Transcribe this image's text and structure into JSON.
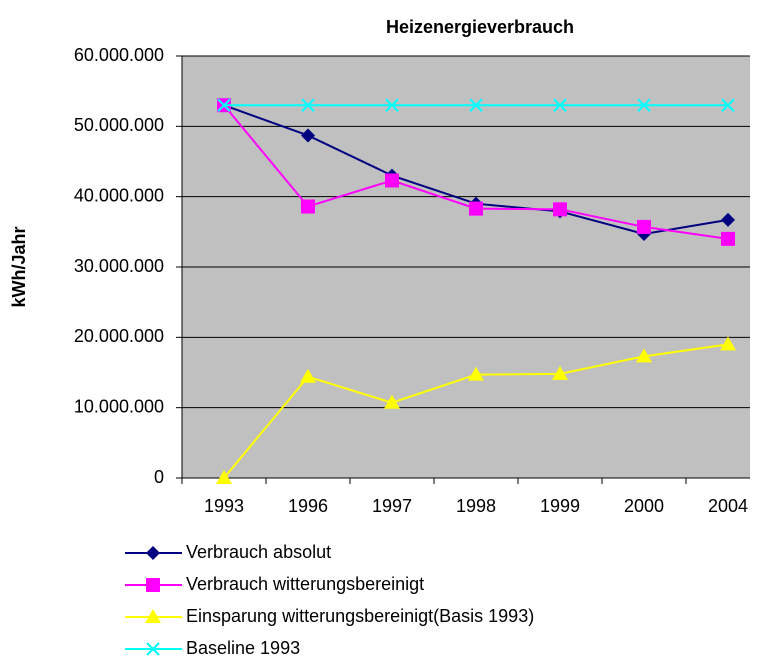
{
  "chart_data": {
    "type": "line",
    "title": "Heizenergieverbrauch",
    "y_label": "kWh/Jahr",
    "categories": [
      "1993",
      "1996",
      "1997",
      "1998",
      "1999",
      "2000",
      "2004"
    ],
    "series": [
      {
        "name": "Verbrauch absolut",
        "color": "#000080",
        "marker": "diamond",
        "values": [
          53000000,
          48700000,
          43000000,
          39000000,
          37900000,
          34700000,
          36700000
        ]
      },
      {
        "name": "Verbrauch witterungsbereinigt",
        "color": "#ff00ff",
        "marker": "square",
        "values": [
          53000000,
          38600000,
          42300000,
          38300000,
          38200000,
          35700000,
          34000000
        ]
      },
      {
        "name": "Einsparung witterungsbereinigt(Basis 1993)",
        "color": "#ffff00",
        "marker": "triangle",
        "values": [
          0,
          14400000,
          10700000,
          14700000,
          14800000,
          17300000,
          19000000
        ]
      },
      {
        "name": "Baseline 1993",
        "color": "#00ffff",
        "marker": "x",
        "values": [
          53000000,
          53000000,
          53000000,
          53000000,
          53000000,
          53000000,
          53000000
        ]
      }
    ],
    "ylim": [
      0,
      60000000
    ],
    "yticks": [
      0,
      {
        "value": 10000000,
        "label": "10.000.000"
      },
      {
        "value": 20000000,
        "label": "20.000.000"
      },
      {
        "value": 30000000,
        "label": "30.000.000"
      },
      {
        "value": 40000000,
        "label": "40.000.000"
      },
      {
        "value": 50000000,
        "label": "50.000.000"
      },
      {
        "value": 60000000,
        "label": "60.000.000"
      }
    ],
    "grid": true,
    "plot_background": "#c0c0c0",
    "legend": "bottom"
  }
}
